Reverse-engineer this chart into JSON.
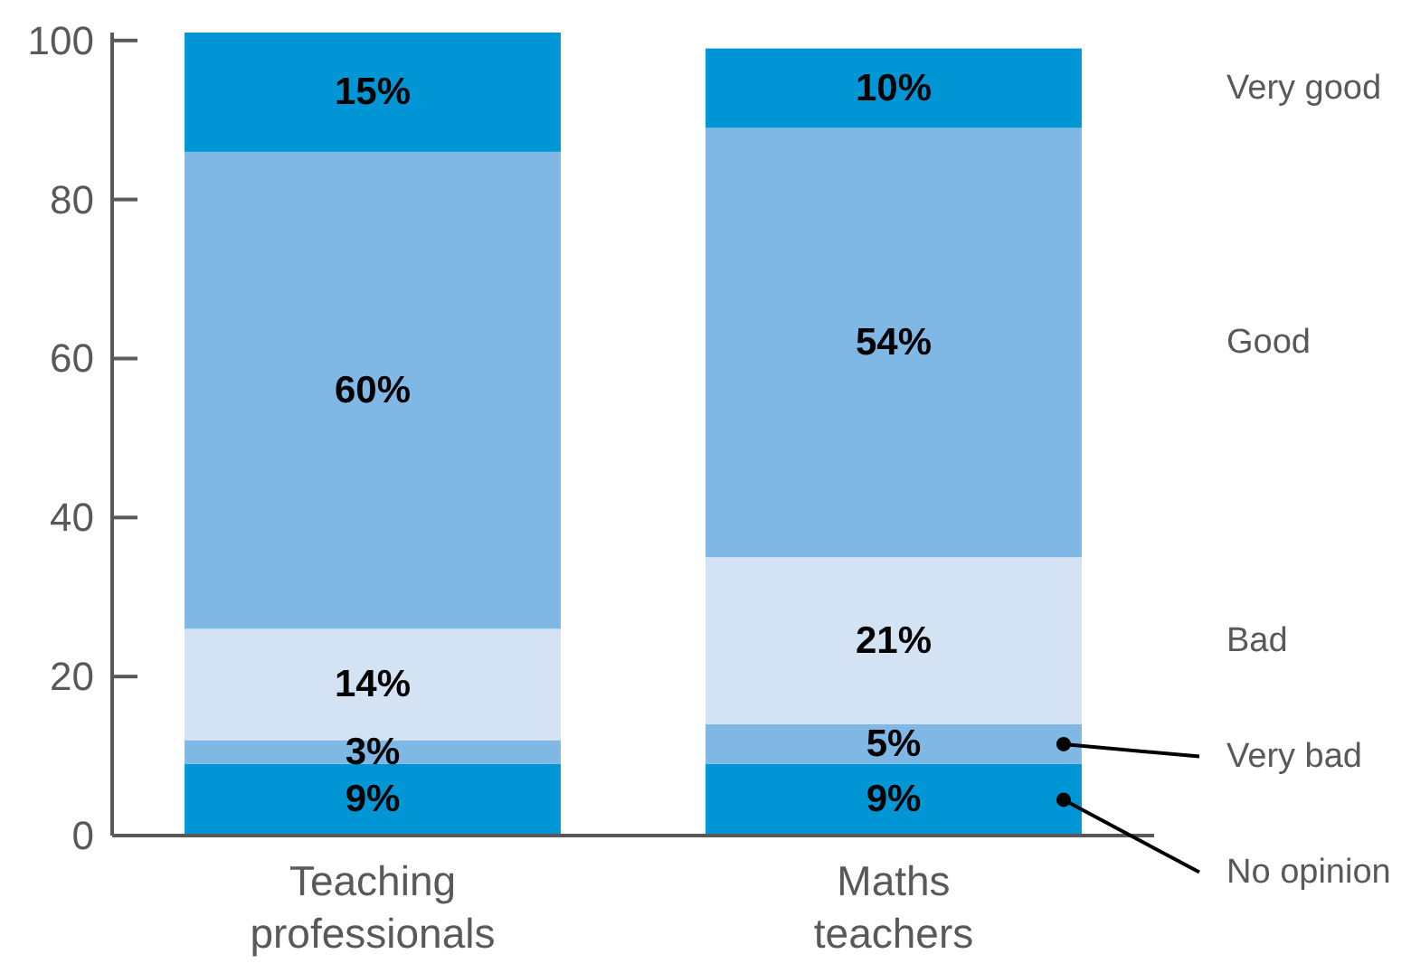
{
  "chart_data": {
    "type": "bar",
    "stacked": true,
    "categories": [
      "Teaching professionals",
      "Maths teachers"
    ],
    "series": [
      {
        "name": "No opinion",
        "color": "#0096d6",
        "values": [
          9,
          9
        ],
        "value_labels": [
          "9%",
          "9%"
        ]
      },
      {
        "name": "Very bad",
        "color": "#7fb8e4",
        "values": [
          3,
          5
        ],
        "value_labels": [
          "3%",
          "5%"
        ]
      },
      {
        "name": "Bad",
        "color": "#d3e3f4",
        "values": [
          14,
          21
        ],
        "value_labels": [
          "14%",
          "21%"
        ]
      },
      {
        "name": "Good",
        "color": "#7fb8e4",
        "values": [
          60,
          54
        ],
        "value_labels": [
          "60%",
          "54%"
        ]
      },
      {
        "name": "Very good",
        "color": "#0096d6",
        "values": [
          15,
          10
        ],
        "value_labels": [
          "15%",
          "10%"
        ]
      }
    ],
    "ylim": [
      0,
      101
    ],
    "yticks": [
      0,
      20,
      40,
      60,
      80,
      100
    ]
  }
}
